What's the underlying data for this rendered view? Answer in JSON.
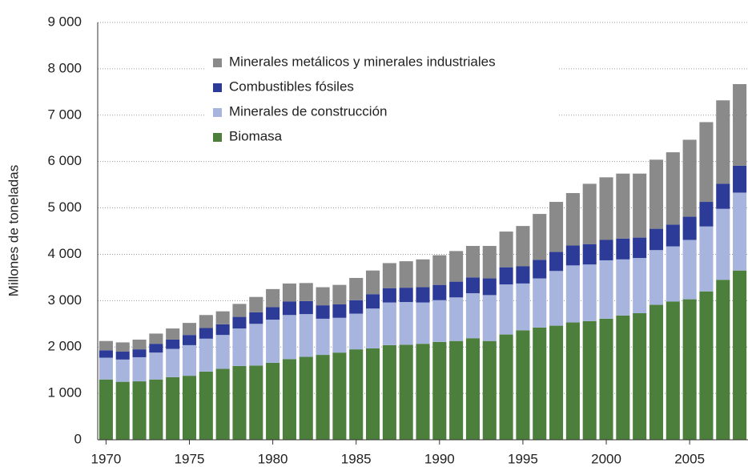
{
  "chart_data": {
    "type": "stacked_bar",
    "ylabel": "Millones de toneladas",
    "categories": [
      "1970",
      null,
      null,
      null,
      null,
      "1975",
      null,
      null,
      null,
      null,
      "1980",
      null,
      null,
      null,
      null,
      "1985",
      null,
      null,
      null,
      null,
      "1990",
      null,
      null,
      null,
      null,
      "1995",
      null,
      null,
      null,
      null,
      "2000",
      null,
      null,
      null,
      null,
      "2005",
      null,
      null,
      null
    ],
    "series": [
      {
        "name": "Biomasa",
        "color": "#4b7f3b",
        "values": [
          1300,
          1250,
          1260,
          1300,
          1350,
          1380,
          1470,
          1530,
          1590,
          1600,
          1660,
          1740,
          1790,
          1830,
          1880,
          1950,
          1970,
          2040,
          2050,
          2070,
          2110,
          2130,
          2190,
          2130,
          2270,
          2360,
          2420,
          2460,
          2530,
          2560,
          2610,
          2680,
          2730,
          2910,
          2980,
          3030,
          3200,
          3450,
          3650
        ]
      },
      {
        "name": "Minerales de construcción",
        "color": "#a7b5de",
        "values": [
          470,
          480,
          520,
          580,
          610,
          660,
          710,
          730,
          810,
          900,
          930,
          950,
          920,
          780,
          750,
          770,
          860,
          920,
          920,
          890,
          900,
          940,
          970,
          990,
          1080,
          1010,
          1060,
          1180,
          1230,
          1220,
          1260,
          1210,
          1190,
          1180,
          1190,
          1280,
          1400,
          1530,
          1680
        ]
      },
      {
        "name": "Combustibles fósiles",
        "color": "#2c3b98",
        "values": [
          160,
          170,
          170,
          190,
          200,
          220,
          230,
          230,
          250,
          250,
          270,
          290,
          280,
          290,
          290,
          290,
          310,
          310,
          310,
          330,
          330,
          340,
          340,
          360,
          370,
          370,
          400,
          410,
          430,
          440,
          440,
          450,
          440,
          460,
          470,
          500,
          530,
          540,
          580
        ]
      },
      {
        "name": "Minerales metálicos y minerales industriales",
        "color": "#8a8a8a",
        "values": [
          200,
          200,
          210,
          220,
          240,
          260,
          280,
          280,
          280,
          330,
          390,
          390,
          390,
          390,
          420,
          480,
          510,
          540,
          570,
          600,
          640,
          660,
          680,
          700,
          770,
          870,
          990,
          1080,
          1130,
          1300,
          1350,
          1400,
          1380,
          1490,
          1560,
          1660,
          1720,
          1800,
          1760
        ]
      }
    ],
    "ylim": [
      0,
      9000
    ],
    "yticks": [
      0,
      {
        "value": 1000,
        "label": "1 000"
      },
      {
        "value": 2000,
        "label": "2 000"
      },
      {
        "value": 3000,
        "label": "3 000"
      },
      {
        "value": 4000,
        "label": "4 000"
      },
      {
        "value": 5000,
        "label": "5 000"
      },
      {
        "value": 6000,
        "label": "6 000"
      },
      {
        "value": 7000,
        "label": "7 000"
      },
      {
        "value": 8000,
        "label": "8 000"
      },
      {
        "value": 9000,
        "label": "9 000"
      }
    ],
    "grid": true
  }
}
